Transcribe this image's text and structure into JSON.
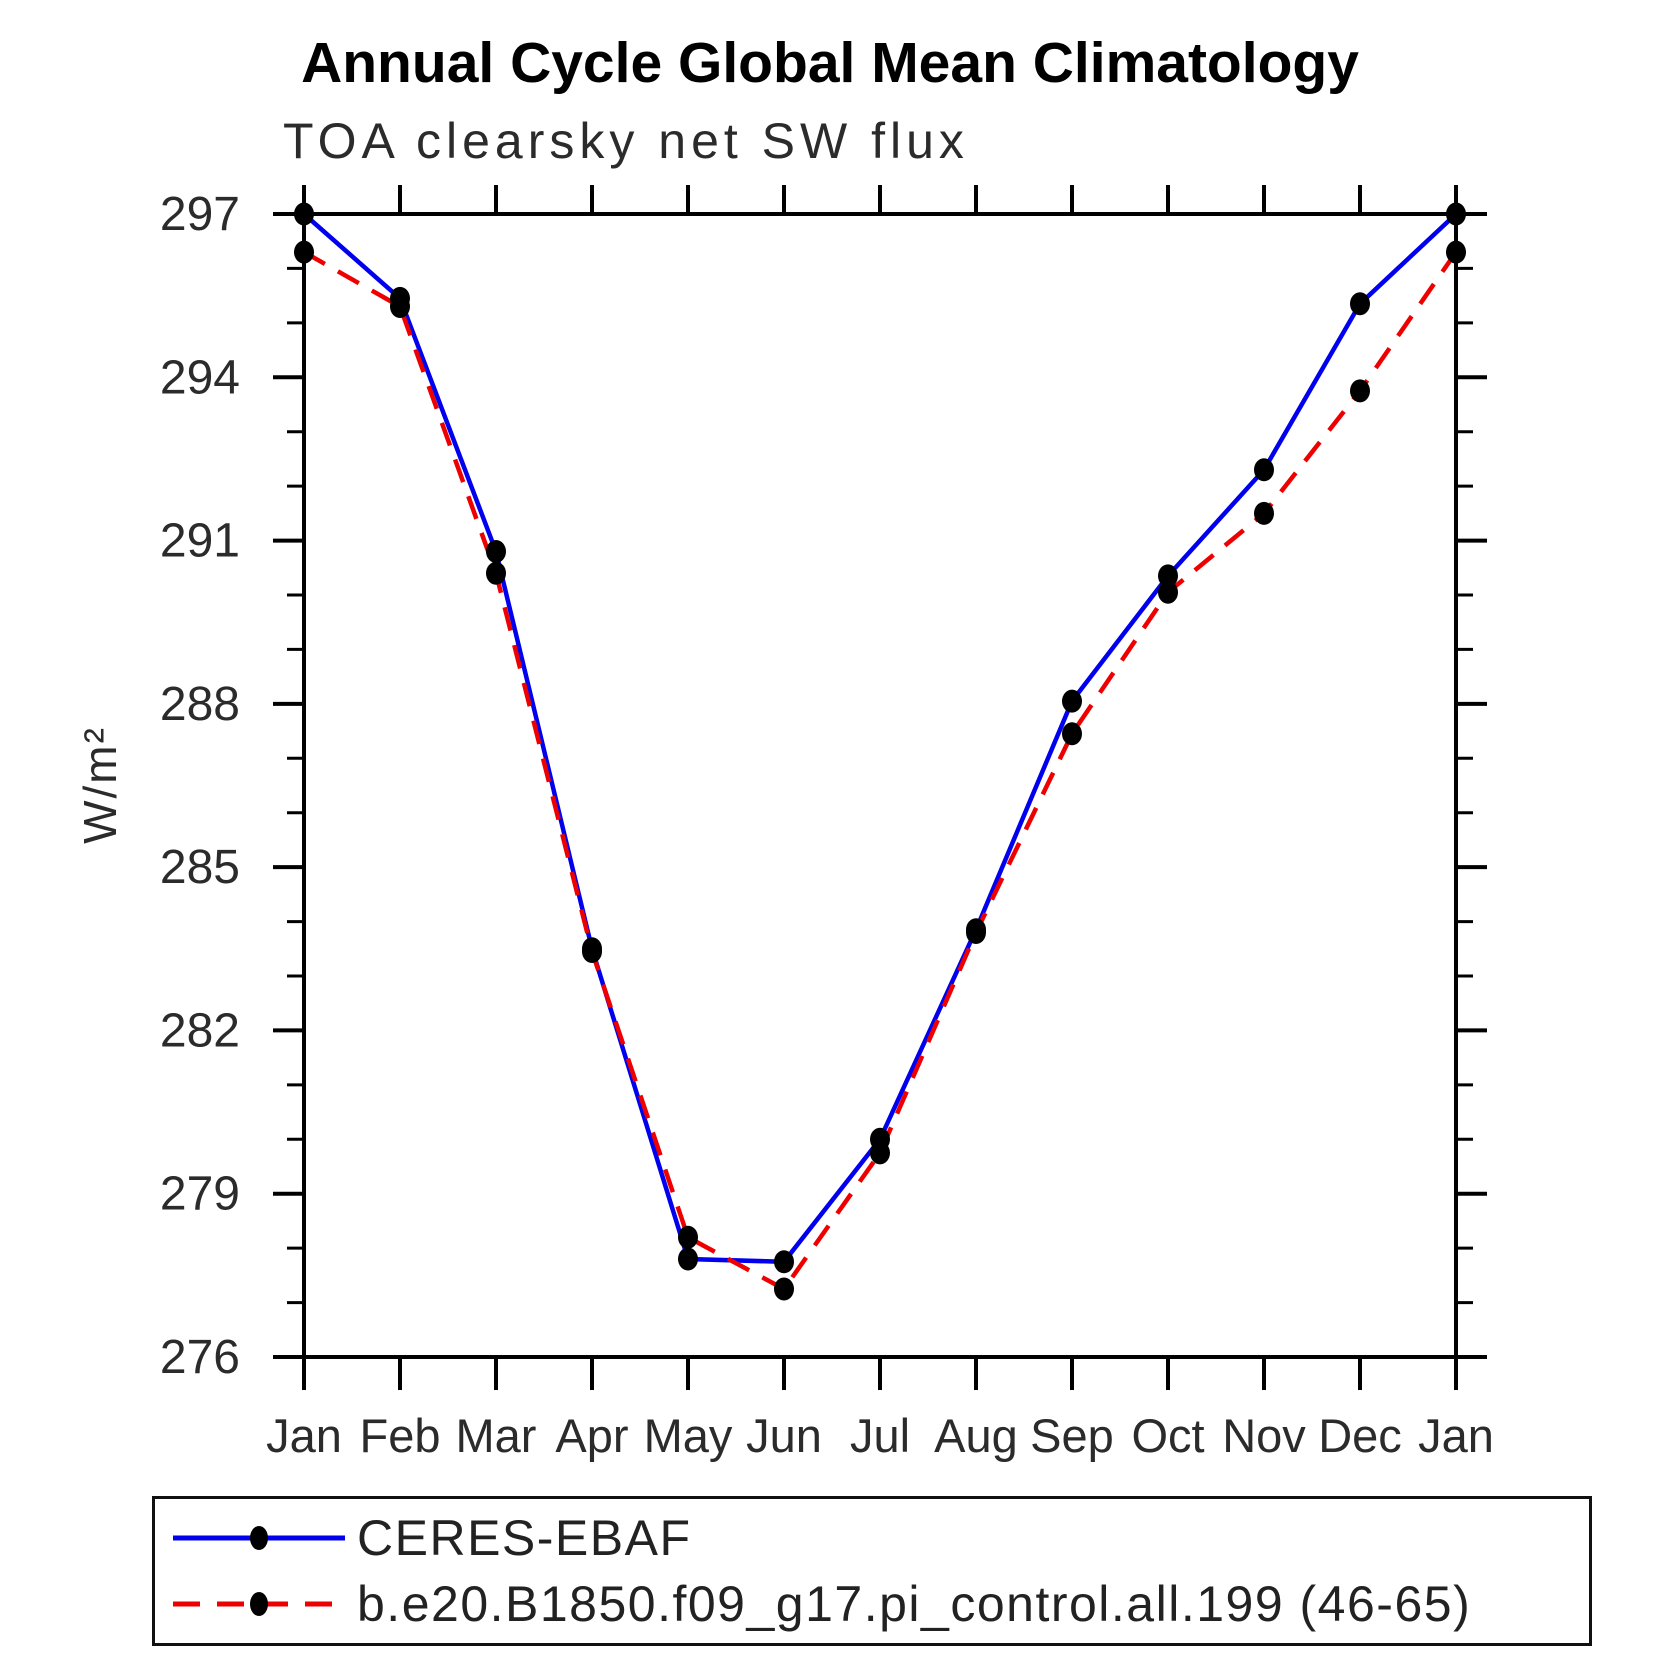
{
  "chart_data": {
    "type": "line",
    "title": "Annual Cycle Global Mean Climatology",
    "subtitle": "TOA clearsky net SW flux",
    "ylabel": "W/m²",
    "xlabel": "",
    "categories": [
      "Jan",
      "Feb",
      "Mar",
      "Apr",
      "May",
      "Jun",
      "Jul",
      "Aug",
      "Sep",
      "Oct",
      "Nov",
      "Dec",
      "Jan"
    ],
    "ylim": [
      276,
      297
    ],
    "y_major_ticks": [
      276,
      279,
      282,
      285,
      288,
      291,
      294,
      297
    ],
    "y_minor_step": 1,
    "grid": "off",
    "legend_position": "bottom",
    "series": [
      {
        "name": "CERES-EBAF",
        "color": "#0000ee",
        "line_style": "solid",
        "marker": "black-dot",
        "values": [
          297.0,
          295.45,
          290.8,
          283.5,
          277.8,
          277.75,
          280.0,
          283.85,
          288.05,
          290.35,
          292.3,
          295.35,
          297.0
        ]
      },
      {
        "name": "b.e20.B1850.f09_g17.pi_control.all.199 (46-65)",
        "color": "#ee0000",
        "line_style": "dashed",
        "marker": "black-dot",
        "values": [
          296.3,
          295.3,
          290.4,
          283.45,
          278.2,
          277.25,
          279.75,
          283.8,
          287.45,
          290.05,
          291.5,
          293.75,
          296.3
        ]
      }
    ],
    "marker_color": "#000000",
    "axis_color": "#000000"
  }
}
